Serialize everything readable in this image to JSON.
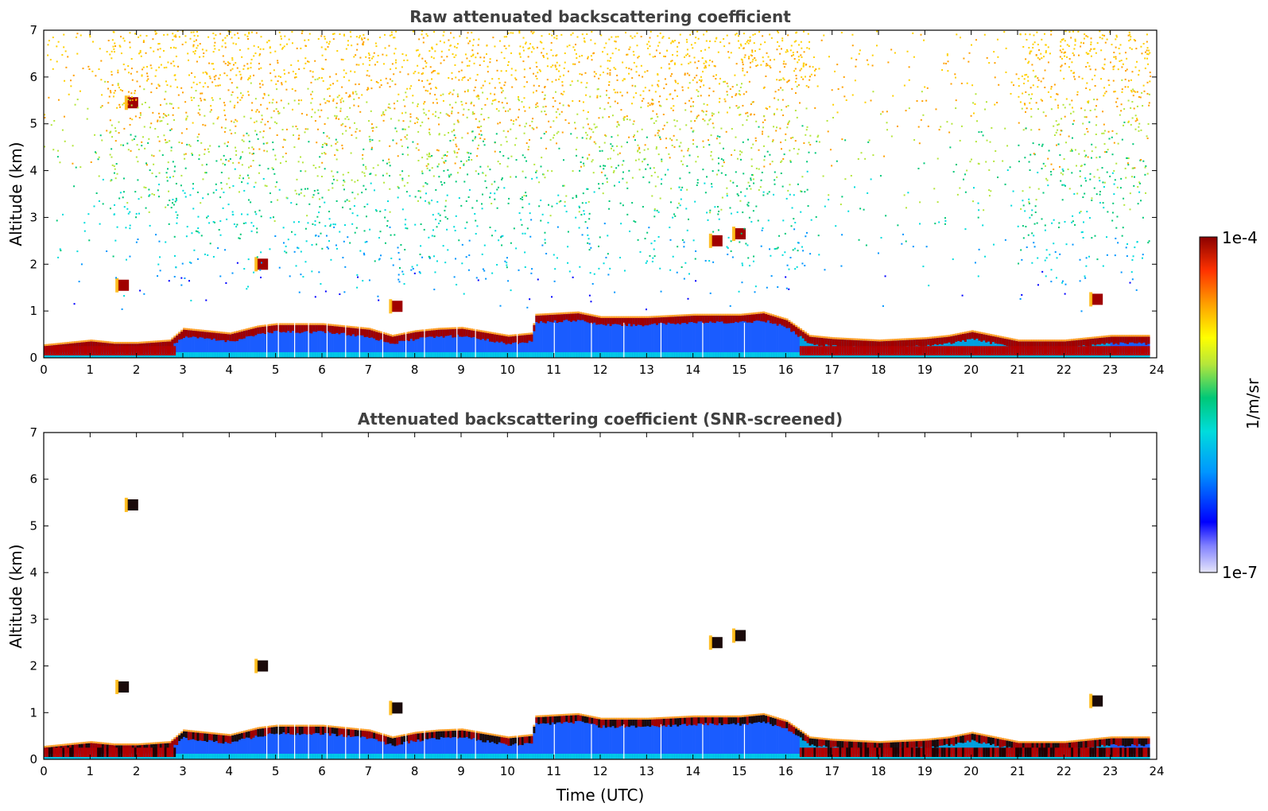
{
  "chart_data": [
    {
      "type": "heatmap",
      "title": "Raw attenuated backscattering coefficient",
      "xlabel": "",
      "ylabel": "Altitude (km)",
      "xlim": [
        0,
        24
      ],
      "ylim": [
        0,
        7
      ],
      "xticks": [
        "0",
        "1",
        "2",
        "3",
        "4",
        "5",
        "6",
        "7",
        "8",
        "9",
        "10",
        "11",
        "12",
        "13",
        "14",
        "15",
        "16",
        "17",
        "18",
        "19",
        "20",
        "21",
        "22",
        "23",
        "24"
      ],
      "yticks": [
        "0",
        "1",
        "2",
        "3",
        "4",
        "5",
        "6",
        "7"
      ],
      "noise_floor": true,
      "boundary_layer_top_km": [
        [
          0.0,
          0.25
        ],
        [
          0.5,
          0.3
        ],
        [
          1.0,
          0.35
        ],
        [
          1.5,
          0.3
        ],
        [
          2.0,
          0.3
        ],
        [
          2.7,
          0.35
        ],
        [
          3.0,
          0.6
        ],
        [
          3.5,
          0.55
        ],
        [
          4.0,
          0.5
        ],
        [
          4.6,
          0.65
        ],
        [
          5.0,
          0.7
        ],
        [
          6.0,
          0.7
        ],
        [
          7.0,
          0.6
        ],
        [
          7.5,
          0.45
        ],
        [
          8.0,
          0.55
        ],
        [
          8.5,
          0.6
        ],
        [
          9.0,
          0.62
        ],
        [
          10.0,
          0.45
        ],
        [
          10.5,
          0.5
        ],
        [
          10.6,
          0.9
        ],
        [
          11.5,
          0.95
        ],
        [
          12.0,
          0.85
        ],
        [
          13.0,
          0.85
        ],
        [
          14.0,
          0.9
        ],
        [
          15.0,
          0.9
        ],
        [
          15.5,
          0.95
        ],
        [
          16.0,
          0.8
        ],
        [
          16.5,
          0.45
        ],
        [
          17.0,
          0.4
        ],
        [
          18.0,
          0.35
        ],
        [
          19.0,
          0.4
        ],
        [
          19.5,
          0.45
        ],
        [
          20.0,
          0.55
        ],
        [
          20.5,
          0.45
        ],
        [
          21.0,
          0.35
        ],
        [
          22.0,
          0.35
        ],
        [
          23.0,
          0.45
        ],
        [
          23.8,
          0.45
        ]
      ],
      "elevated_layers": [
        {
          "time_h": 1.9,
          "alt_km": 5.45
        },
        {
          "time_h": 1.7,
          "alt_km": 1.55
        },
        {
          "time_h": 4.7,
          "alt_km": 2.0
        },
        {
          "time_h": 7.6,
          "alt_km": 1.1
        },
        {
          "time_h": 14.5,
          "alt_km": 2.5
        },
        {
          "time_h": 15.0,
          "alt_km": 2.65
        },
        {
          "time_h": 22.7,
          "alt_km": 1.25
        }
      ]
    },
    {
      "type": "heatmap",
      "title": "Attenuated backscattering coefficient (SNR-screened)",
      "xlabel": "Time (UTC)",
      "ylabel": "Altitude (km)",
      "xlim": [
        0,
        24
      ],
      "ylim": [
        0,
        7
      ],
      "xticks": [
        "0",
        "1",
        "2",
        "3",
        "4",
        "5",
        "6",
        "7",
        "8",
        "9",
        "10",
        "11",
        "12",
        "13",
        "14",
        "15",
        "16",
        "17",
        "18",
        "19",
        "20",
        "21",
        "22",
        "23",
        "24"
      ],
      "yticks": [
        "0",
        "1",
        "2",
        "3",
        "4",
        "5",
        "6",
        "7"
      ],
      "noise_floor": false
    }
  ],
  "colorbar": {
    "max_label": "1e-4",
    "min_label": "1e-7",
    "units_label": "1/m/sr",
    "colors": [
      "#e6e6fa",
      "#0000ff",
      "#0096ff",
      "#00dcdc",
      "#00c878",
      "#b4e63c",
      "#ffff00",
      "#ffa000",
      "#ff3200",
      "#8b0000"
    ]
  }
}
